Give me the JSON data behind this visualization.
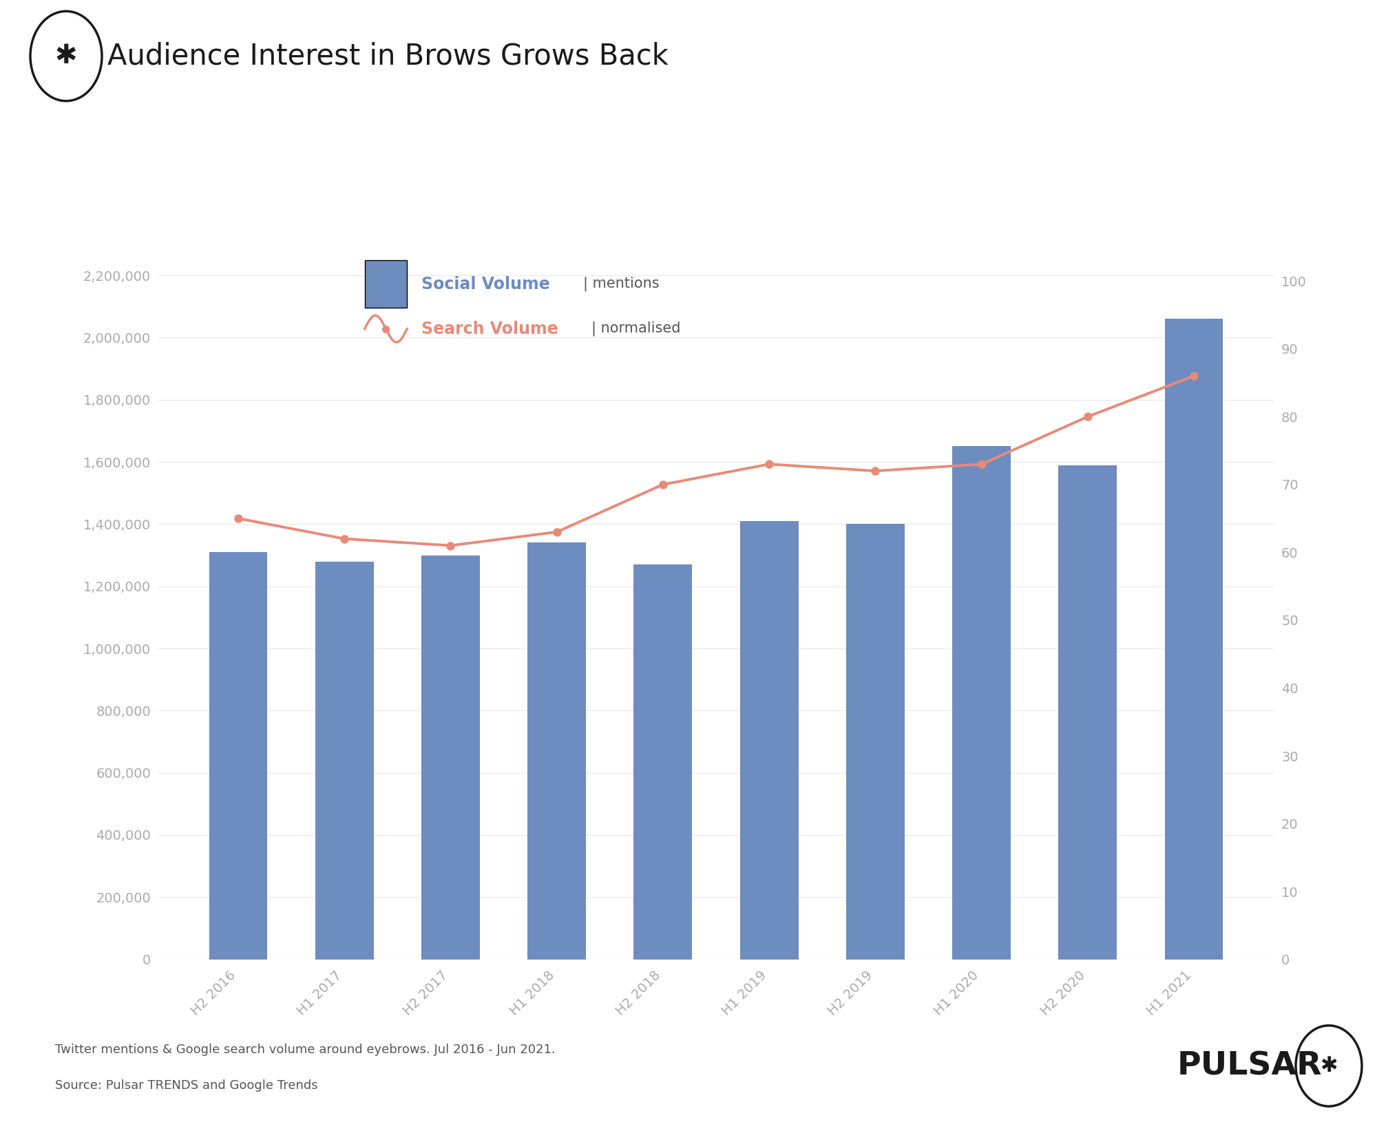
{
  "categories": [
    "H2 2016",
    "H1 2017",
    "H2 2017",
    "H1 2018",
    "H2 2018",
    "H1 2019",
    "H2 2019",
    "H1 2020",
    "H2 2020",
    "H1 2021"
  ],
  "social_volume": [
    1310000,
    1280000,
    1300000,
    1340000,
    1270000,
    1410000,
    1400000,
    1650000,
    1590000,
    2060000
  ],
  "search_volume": [
    65,
    62,
    61,
    63,
    70,
    73,
    72,
    73,
    80,
    86
  ],
  "bar_color": "#6d8cbf",
  "line_color": "#e88a78",
  "title": "Audience Interest in Brows Grows Back",
  "title_fontsize": 30,
  "header_bg_color": "#e8f2f7",
  "chart_bg_color": "#ffffff",
  "social_label": "Social Volume",
  "social_sublabel": "| mentions",
  "search_label": "Search Volume",
  "search_sublabel": "| normalised",
  "footer_text1": "Twitter mentions & Google search volume around eyebrows. Jul 2016 - Jun 2021.",
  "footer_text2": "Source: Pulsar TRENDS and Google Trends",
  "pulsar_text": "PULSAR",
  "ylim_left": [
    0,
    2400000
  ],
  "ylim_right": [
    0,
    110
  ],
  "yticks_left": [
    0,
    200000,
    400000,
    600000,
    800000,
    1000000,
    1200000,
    1400000,
    1600000,
    1800000,
    2000000,
    2200000
  ],
  "yticks_right": [
    0,
    10,
    20,
    30,
    40,
    50,
    60,
    70,
    80,
    90,
    100
  ],
  "tick_label_color": "#aaaaaa",
  "grid_color": "#e8e8e8",
  "footer_text_color": "#555555",
  "title_color": "#1a1a1a"
}
